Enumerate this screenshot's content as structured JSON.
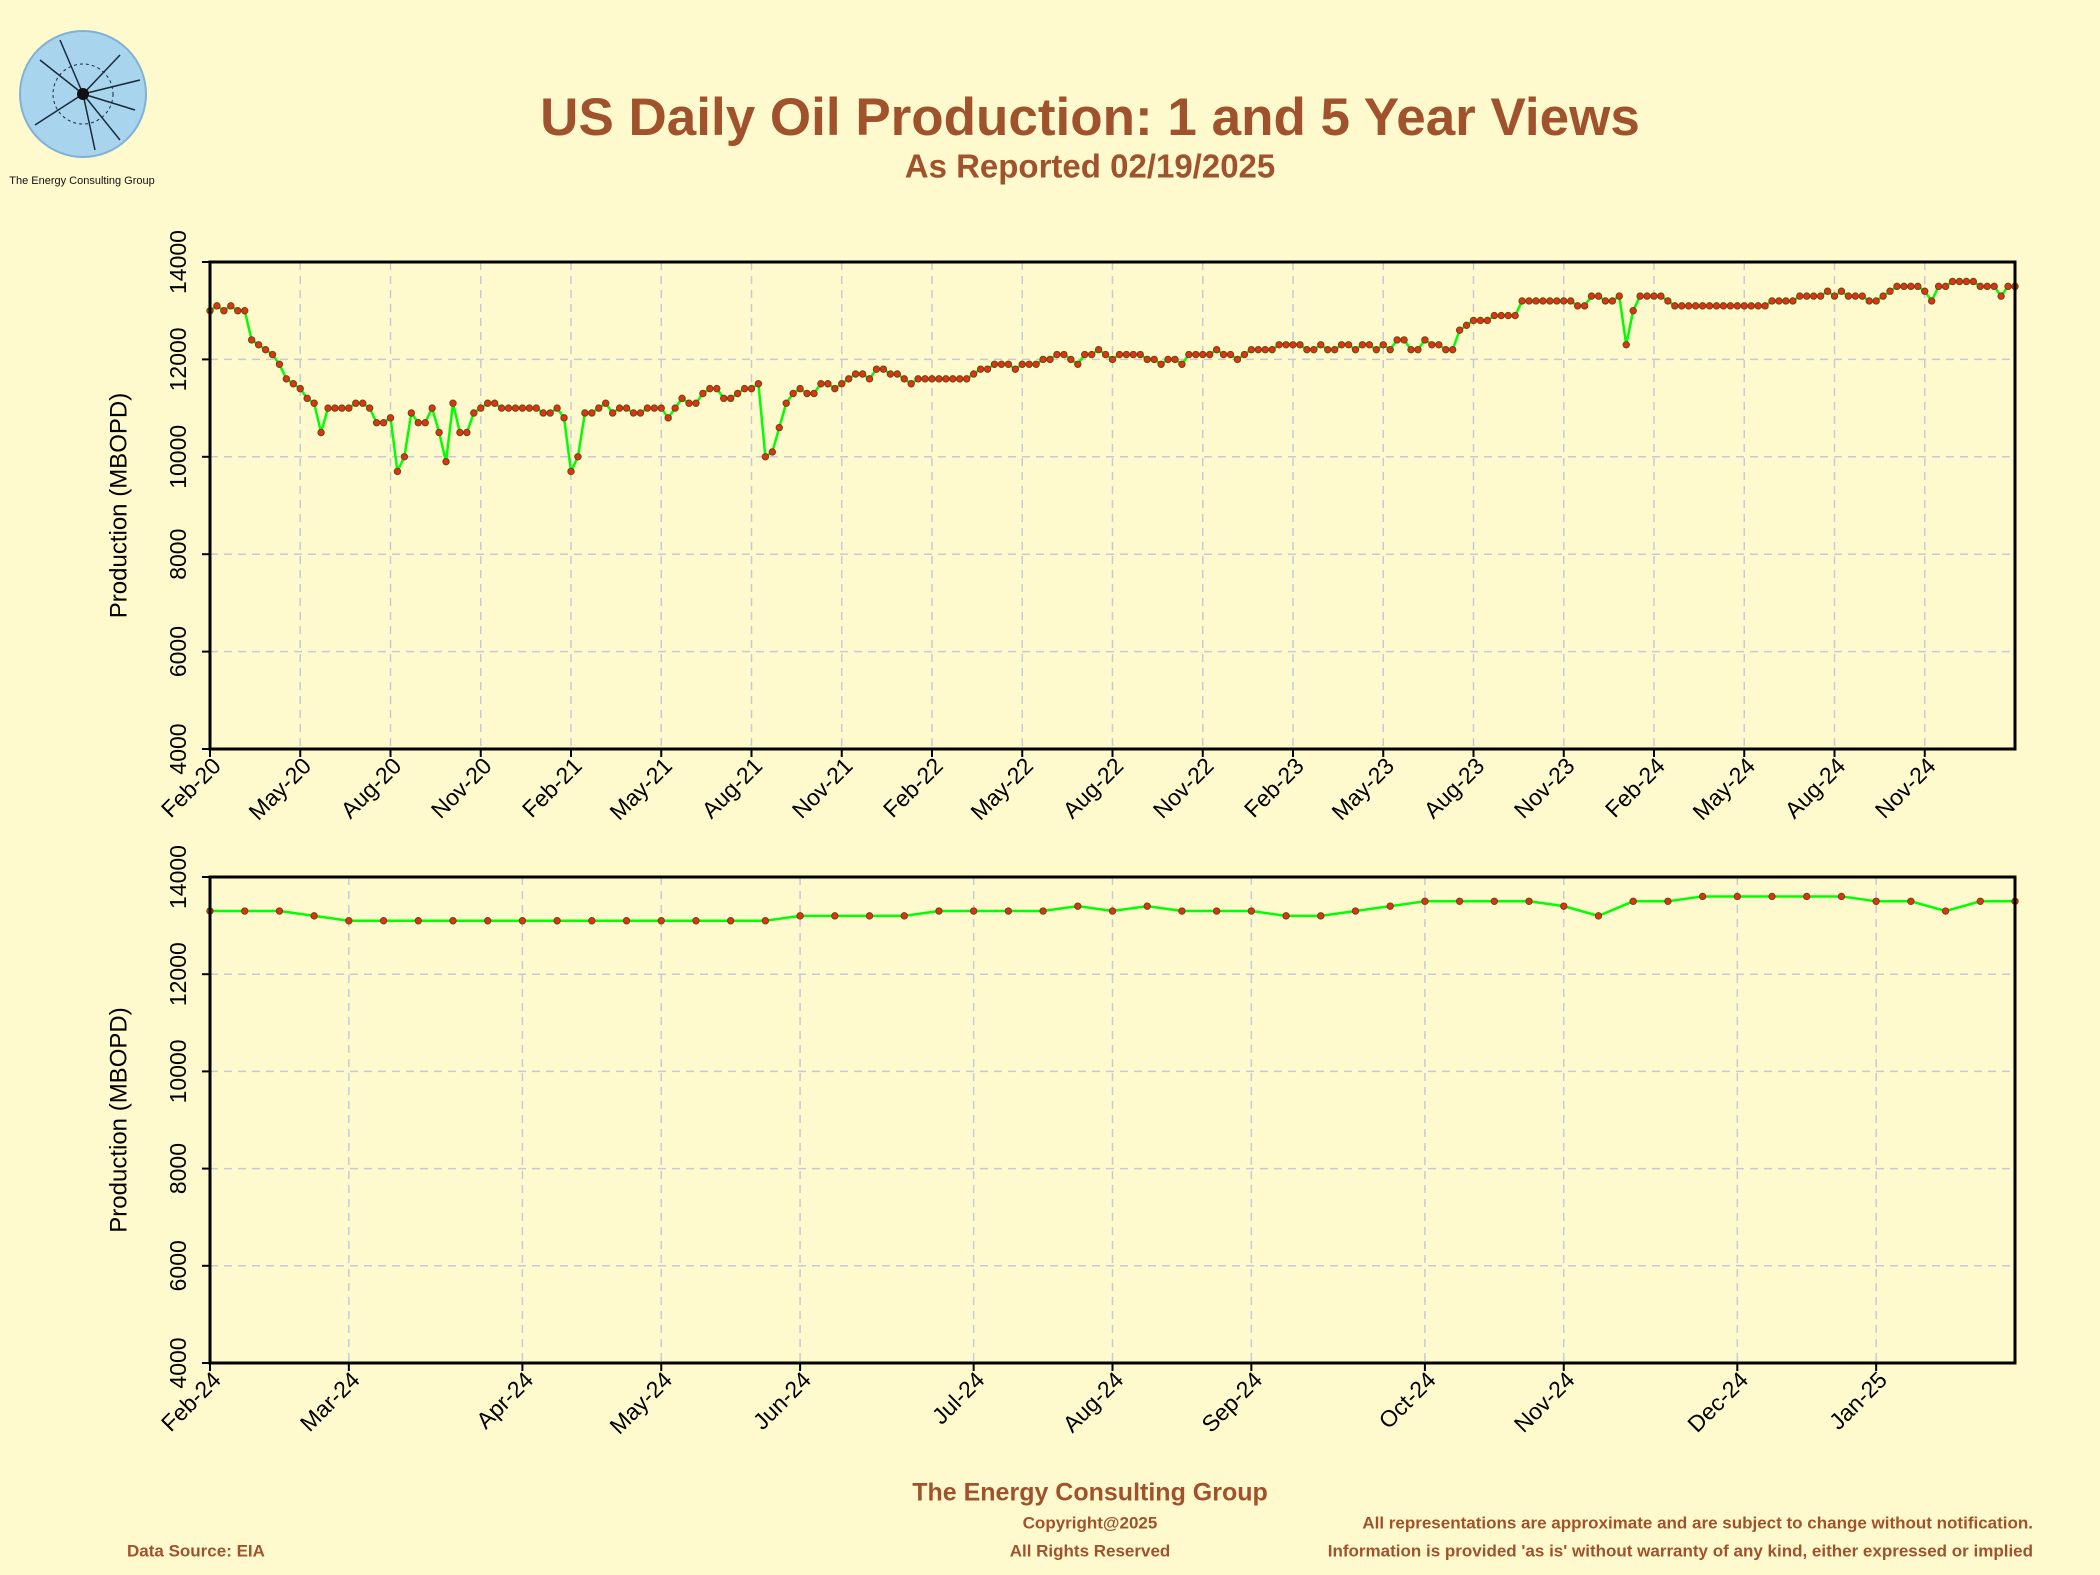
{
  "header": {
    "title": "US Daily Oil Production: 1 and 5 Year Views",
    "subtitle": "As Reported 02/19/2025",
    "logo_text": "The Energy Consulting Group"
  },
  "footer": {
    "company": "The Energy Consulting Group",
    "copyright": "Copyright@2025",
    "rights": "All Rights Reserved",
    "disclaimer1": "All representations are approximate and are subject to change without notification.",
    "disclaimer2": "Information is provided 'as is' without warranty of any kind, either expressed or implied",
    "source": "Data Source: EIA"
  },
  "chart_data": [
    {
      "type": "line",
      "ylabel": "Production (MBOPD)",
      "color": "#00ff00",
      "marker_color": "#e03020",
      "grid": true,
      "ylim": [
        4000,
        14000
      ],
      "yticks": [
        4000,
        6000,
        8000,
        10000,
        12000,
        14000
      ],
      "categories": [
        "Feb-20",
        null,
        null,
        null,
        null,
        null,
        null,
        null,
        null,
        null,
        null,
        null,
        null,
        "May-20",
        null,
        null,
        null,
        null,
        null,
        null,
        null,
        null,
        null,
        null,
        null,
        null,
        "Aug-20",
        null,
        null,
        null,
        null,
        null,
        null,
        null,
        null,
        null,
        null,
        null,
        null,
        "Nov-20",
        null,
        null,
        null,
        null,
        null,
        null,
        null,
        null,
        null,
        null,
        null,
        null,
        "Feb-21",
        null,
        null,
        null,
        null,
        null,
        null,
        null,
        null,
        null,
        null,
        null,
        null,
        "May-21",
        null,
        null,
        null,
        null,
        null,
        null,
        null,
        null,
        null,
        null,
        null,
        null,
        "Aug-21",
        null,
        null,
        null,
        null,
        null,
        null,
        null,
        null,
        null,
        null,
        null,
        null,
        "Nov-21",
        null,
        null,
        null,
        null,
        null,
        null,
        null,
        null,
        null,
        null,
        null,
        null,
        "Feb-22",
        null,
        null,
        null,
        null,
        null,
        null,
        null,
        null,
        null,
        null,
        null,
        null,
        "May-22",
        null,
        null,
        null,
        null,
        null,
        null,
        null,
        null,
        null,
        null,
        null,
        null,
        "Aug-22",
        null,
        null,
        null,
        null,
        null,
        null,
        null,
        null,
        null,
        null,
        null,
        null,
        "Nov-22",
        null,
        null,
        null,
        null,
        null,
        null,
        null,
        null,
        null,
        null,
        null,
        null,
        "Feb-23",
        null,
        null,
        null,
        null,
        null,
        null,
        null,
        null,
        null,
        null,
        null,
        null,
        "May-23",
        null,
        null,
        null,
        null,
        null,
        null,
        null,
        null,
        null,
        null,
        null,
        null,
        "Aug-23",
        null,
        null,
        null,
        null,
        null,
        null,
        null,
        null,
        null,
        null,
        null,
        null,
        "Nov-23",
        null,
        null,
        null,
        null,
        null,
        null,
        null,
        null,
        null,
        null,
        null,
        null,
        "Feb-24",
        null,
        null,
        null,
        null,
        null,
        null,
        null,
        null,
        null,
        null,
        null,
        null,
        "May-24",
        null,
        null,
        null,
        null,
        null,
        null,
        null,
        null,
        null,
        null,
        null,
        null,
        "Aug-24",
        null,
        null,
        null,
        null,
        null,
        null,
        null,
        null,
        null,
        null,
        null,
        null,
        "Nov-24",
        null,
        null,
        null,
        null,
        null,
        null,
        null,
        null,
        null,
        null,
        null,
        null,
        null
      ],
      "values": [
        13000,
        13100,
        13000,
        13100,
        13000,
        13000,
        12400,
        12300,
        12200,
        12100,
        11900,
        11600,
        11500,
        11400,
        11200,
        11100,
        10500,
        11000,
        11000,
        11000,
        11000,
        11100,
        11100,
        11000,
        10700,
        10700,
        10800,
        9700,
        10000,
        10900,
        10700,
        10700,
        11000,
        10500,
        9900,
        11100,
        10500,
        10500,
        10900,
        11000,
        11100,
        11100,
        11000,
        11000,
        11000,
        11000,
        11000,
        11000,
        10900,
        10900,
        11000,
        10800,
        9700,
        10000,
        10900,
        10900,
        11000,
        11100,
        10900,
        11000,
        11000,
        10900,
        10900,
        11000,
        11000,
        11000,
        10800,
        11000,
        11200,
        11100,
        11100,
        11300,
        11400,
        11400,
        11200,
        11200,
        11300,
        11400,
        11400,
        11500,
        10000,
        10100,
        10600,
        11100,
        11300,
        11400,
        11300,
        11300,
        11500,
        11500,
        11400,
        11500,
        11600,
        11700,
        11700,
        11600,
        11800,
        11800,
        11700,
        11700,
        11600,
        11500,
        11600,
        11600,
        11600,
        11600,
        11600,
        11600,
        11600,
        11600,
        11700,
        11800,
        11800,
        11900,
        11900,
        11900,
        11800,
        11900,
        11900,
        11900,
        12000,
        12000,
        12100,
        12100,
        12000,
        11900,
        12100,
        12100,
        12200,
        12100,
        12000,
        12100,
        12100,
        12100,
        12100,
        12000,
        12000,
        11900,
        12000,
        12000,
        11900,
        12100,
        12100,
        12100,
        12100,
        12200,
        12100,
        12100,
        12000,
        12100,
        12200,
        12200,
        12200,
        12200,
        12300,
        12300,
        12300,
        12300,
        12200,
        12200,
        12300,
        12200,
        12200,
        12300,
        12300,
        12200,
        12300,
        12300,
        12200,
        12300,
        12200,
        12400,
        12400,
        12200,
        12200,
        12400,
        12300,
        12300,
        12200,
        12200,
        12600,
        12700,
        12800,
        12800,
        12800,
        12900,
        12900,
        12900,
        12900,
        13200,
        13200,
        13200,
        13200,
        13200,
        13200,
        13200,
        13200,
        13100,
        13100,
        13300,
        13300,
        13200,
        13200,
        13300,
        12300,
        13000,
        13300,
        13300,
        13300,
        13300,
        13200,
        13100,
        13100,
        13100,
        13100,
        13100,
        13100,
        13100,
        13100,
        13100,
        13100,
        13100,
        13100,
        13100,
        13100,
        13200,
        13200,
        13200,
        13200,
        13300,
        13300,
        13300,
        13300,
        13400,
        13300,
        13400,
        13300,
        13300,
        13300,
        13200,
        13200,
        13300,
        13400,
        13500,
        13500,
        13500,
        13500,
        13400,
        13200,
        13500,
        13500,
        13600,
        13600,
        13600,
        13600,
        13500,
        13500,
        13500,
        13300,
        13500,
        13500
      ]
    },
    {
      "type": "line",
      "ylabel": "Production (MBOPD)",
      "color": "#00ff00",
      "marker_color": "#e03020",
      "grid": true,
      "ylim": [
        4000,
        14000
      ],
      "yticks": [
        4000,
        6000,
        8000,
        10000,
        12000,
        14000
      ],
      "categories": [
        "Feb-24",
        null,
        null,
        null,
        "Mar-24",
        null,
        null,
        null,
        null,
        "Apr-24",
        null,
        null,
        null,
        "May-24",
        null,
        null,
        null,
        "Jun-24",
        null,
        null,
        null,
        null,
        "Jul-24",
        null,
        null,
        null,
        "Aug-24",
        null,
        null,
        null,
        "Sep-24",
        null,
        null,
        null,
        null,
        "Oct-24",
        null,
        null,
        null,
        "Nov-24",
        null,
        null,
        null,
        null,
        "Dec-24",
        null,
        null,
        null,
        "Jan-25",
        null,
        null,
        null,
        null
      ],
      "values": [
        13300,
        13300,
        13300,
        13200,
        13100,
        13100,
        13100,
        13100,
        13100,
        13100,
        13100,
        13100,
        13100,
        13100,
        13100,
        13100,
        13100,
        13200,
        13200,
        13200,
        13200,
        13300,
        13300,
        13300,
        13300,
        13400,
        13300,
        13400,
        13300,
        13300,
        13300,
        13200,
        13200,
        13300,
        13400,
        13500,
        13500,
        13500,
        13500,
        13400,
        13200,
        13500,
        13500,
        13600,
        13600,
        13600,
        13600,
        13600,
        13500,
        13500,
        13300,
        13500,
        13500
      ]
    }
  ]
}
